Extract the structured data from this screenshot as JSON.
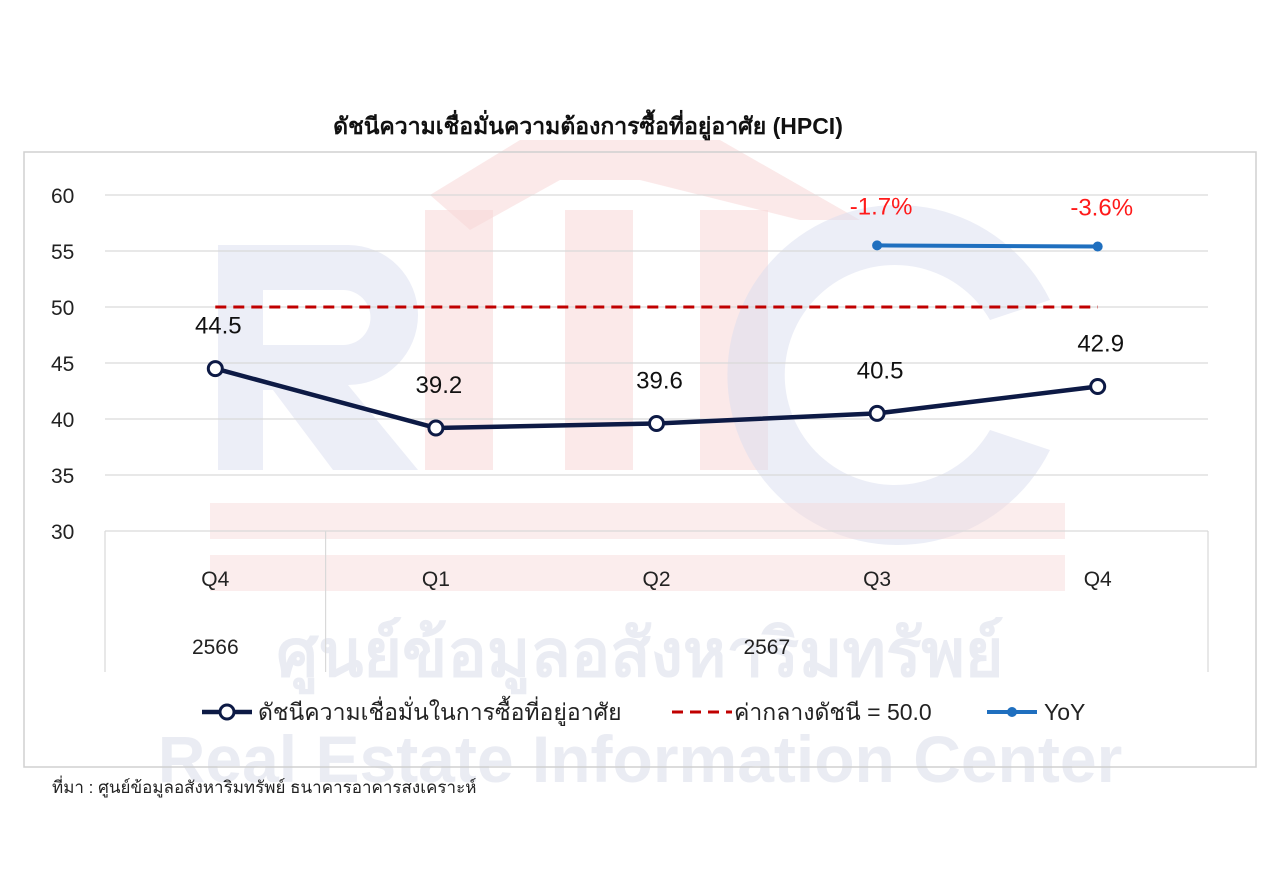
{
  "chart_data": {
    "type": "line",
    "title": "ดัชนีความเชื่อมั่นความต้องการซื้อที่อยู่อาศัย (HPCI)",
    "categories": [
      "Q4",
      "Q1",
      "Q2",
      "Q3",
      "Q4"
    ],
    "year_groups": [
      {
        "label": "2566",
        "categories": [
          "Q4"
        ]
      },
      {
        "label": "2567",
        "categories": [
          "Q1",
          "Q2",
          "Q3",
          "Q4"
        ]
      }
    ],
    "ylim": [
      30,
      60
    ],
    "yticks": [
      "60",
      "55",
      "50",
      "45",
      "40",
      "35",
      "30"
    ],
    "series": [
      {
        "name": "ดัชนีความเชื่อมั่นในการซื้อที่อยู่อาศัย",
        "values": [
          44.5,
          39.2,
          39.6,
          40.5,
          42.9
        ],
        "labels": [
          "44.5",
          "39.2",
          "39.6",
          "40.5",
          "42.9"
        ],
        "color": "#0d1a45",
        "style": "solid-marker"
      },
      {
        "name": "ค่ากลางดัชนี = 50.0",
        "values": [
          50,
          50,
          50,
          50,
          50
        ],
        "color": "#c00000",
        "style": "dashed"
      },
      {
        "name": "YoY",
        "values": [
          null,
          null,
          null,
          55.5,
          55.4
        ],
        "labels": [
          "",
          "",
          "",
          "-1.7%",
          "-3.6%"
        ],
        "color": "#1f6fbf",
        "label_color": "#ff1a1a",
        "style": "solid-dot"
      }
    ],
    "legend": "bottom",
    "grid": true
  },
  "source": "ที่มา : ศูนย์ข้อมูลอสังหาริมทรัพย์ ธนาคารอาคารสงเคราะห์",
  "watermark": {
    "logo": "REIC",
    "line1": "ศูนย์ข้อมูลอสังหาริมทรัพย์",
    "line2": "Real Estate Information Center"
  }
}
